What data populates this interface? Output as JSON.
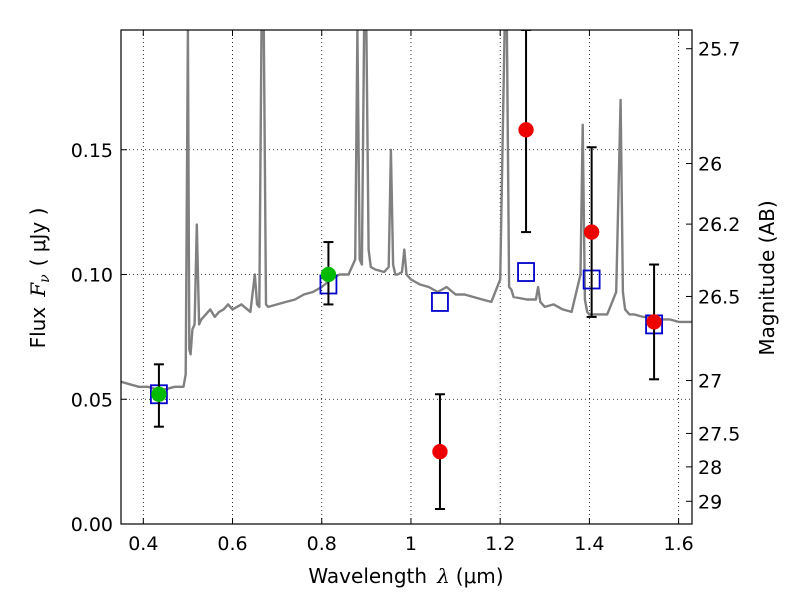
{
  "chart_data": {
    "type": "scatter",
    "xlabel_prefix": "Wavelength",
    "xlabel_lambda": "λ",
    "xlabel_unit": "(μm)",
    "ylabel_prefix": "Flux",
    "ylabel_symbol": "F",
    "ylabel_sub": "ν",
    "ylabel_unit": "( μJy )",
    "y2label": "Magnitude (AB)",
    "xlim": [
      0.35,
      1.63
    ],
    "ylim": [
      0.0,
      0.198
    ],
    "grid": true,
    "x_ticks": [
      {
        "value": 0.4,
        "label": "0.4"
      },
      {
        "value": 0.6,
        "label": "0.6"
      },
      {
        "value": 0.8,
        "label": "0.8"
      },
      {
        "value": 1.0,
        "label": "1"
      },
      {
        "value": 1.2,
        "label": "1.2"
      },
      {
        "value": 1.4,
        "label": "1.4"
      },
      {
        "value": 1.6,
        "label": "1.6"
      }
    ],
    "y_ticks": [
      {
        "value": 0.0,
        "label": "0.00"
      },
      {
        "value": 0.05,
        "label": "0.05"
      },
      {
        "value": 0.1,
        "label": "0.10"
      },
      {
        "value": 0.15,
        "label": "0.15"
      }
    ],
    "mag_ticks": [
      {
        "flux": 0.1905,
        "label": "25.7"
      },
      {
        "flux": 0.1445,
        "label": "26"
      },
      {
        "flux": 0.1202,
        "label": "26.2"
      },
      {
        "flux": 0.0912,
        "label": "26.5"
      },
      {
        "flux": 0.0575,
        "label": "27"
      },
      {
        "flux": 0.0363,
        "label": "27.5"
      },
      {
        "flux": 0.0229,
        "label": "28"
      },
      {
        "flux": 0.0091,
        "label": "29"
      }
    ],
    "model_spectrum": {
      "color": "#808080",
      "x": [
        0.35,
        0.37,
        0.39,
        0.41,
        0.43,
        0.45,
        0.47,
        0.49,
        0.495,
        0.5,
        0.503,
        0.506,
        0.51,
        0.515,
        0.52,
        0.525,
        0.53,
        0.54,
        0.55,
        0.56,
        0.57,
        0.58,
        0.59,
        0.6,
        0.62,
        0.64,
        0.65,
        0.655,
        0.66,
        0.665,
        0.67,
        0.675,
        0.68,
        0.7,
        0.72,
        0.74,
        0.76,
        0.78,
        0.8,
        0.82,
        0.84,
        0.86,
        0.875,
        0.88,
        0.885,
        0.89,
        0.895,
        0.9,
        0.905,
        0.91,
        0.92,
        0.94,
        0.95,
        0.955,
        0.96,
        0.965,
        0.97,
        0.98,
        0.985,
        0.99,
        1.0,
        1.02,
        1.04,
        1.06,
        1.08,
        1.1,
        1.12,
        1.14,
        1.16,
        1.18,
        1.2,
        1.21,
        1.215,
        1.22,
        1.225,
        1.23,
        1.26,
        1.28,
        1.285,
        1.29,
        1.3,
        1.32,
        1.34,
        1.36,
        1.38,
        1.385,
        1.39,
        1.395,
        1.4,
        1.42,
        1.44,
        1.46,
        1.47,
        1.475,
        1.48,
        1.49,
        1.5,
        1.52,
        1.54,
        1.56,
        1.58,
        1.6,
        1.63
      ],
      "y": [
        0.057,
        0.056,
        0.055,
        0.055,
        0.054,
        0.054,
        0.055,
        0.055,
        0.06,
        0.198,
        0.07,
        0.068,
        0.078,
        0.08,
        0.12,
        0.08,
        0.082,
        0.084,
        0.086,
        0.083,
        0.085,
        0.086,
        0.088,
        0.086,
        0.088,
        0.085,
        0.1,
        0.088,
        0.087,
        0.198,
        0.198,
        0.088,
        0.087,
        0.088,
        0.089,
        0.09,
        0.092,
        0.093,
        0.095,
        0.098,
        0.1,
        0.1,
        0.106,
        0.198,
        0.106,
        0.104,
        0.198,
        0.198,
        0.11,
        0.103,
        0.102,
        0.101,
        0.103,
        0.15,
        0.104,
        0.1,
        0.1,
        0.101,
        0.11,
        0.1,
        0.098,
        0.096,
        0.095,
        0.093,
        0.095,
        0.092,
        0.092,
        0.091,
        0.09,
        0.089,
        0.098,
        0.198,
        0.198,
        0.095,
        0.094,
        0.091,
        0.09,
        0.09,
        0.095,
        0.089,
        0.087,
        0.088,
        0.086,
        0.085,
        0.1,
        0.16,
        0.09,
        0.085,
        0.084,
        0.084,
        0.084,
        0.093,
        0.17,
        0.093,
        0.086,
        0.084,
        0.084,
        0.083,
        0.083,
        0.082,
        0.082,
        0.081,
        0.081
      ]
    },
    "series": [
      {
        "marker": "square",
        "color": "#0000cc",
        "points": [
          {
            "x": 0.435,
            "y": 0.052
          },
          {
            "x": 0.815,
            "y": 0.096
          },
          {
            "x": 1.065,
            "y": 0.089
          },
          {
            "x": 1.258,
            "y": 0.101
          },
          {
            "x": 1.405,
            "y": 0.098
          },
          {
            "x": 1.545,
            "y": 0.08
          }
        ]
      },
      {
        "marker": "circle",
        "color": "#00bb00",
        "points": [
          {
            "x": 0.435,
            "y": 0.052,
            "ylo": 0.039,
            "yhi": 0.064
          },
          {
            "x": 0.815,
            "y": 0.1,
            "ylo": 0.088,
            "yhi": 0.113
          }
        ]
      },
      {
        "marker": "circle",
        "color": "#ee0000",
        "points": [
          {
            "x": 1.065,
            "y": 0.029,
            "ylo": 0.006,
            "yhi": 0.052
          },
          {
            "x": 1.258,
            "y": 0.158,
            "ylo": 0.117,
            "yhi": 0.198
          },
          {
            "x": 1.405,
            "y": 0.117,
            "ylo": 0.083,
            "yhi": 0.151
          },
          {
            "x": 1.545,
            "y": 0.081,
            "ylo": 0.058,
            "yhi": 0.104
          }
        ]
      }
    ]
  }
}
